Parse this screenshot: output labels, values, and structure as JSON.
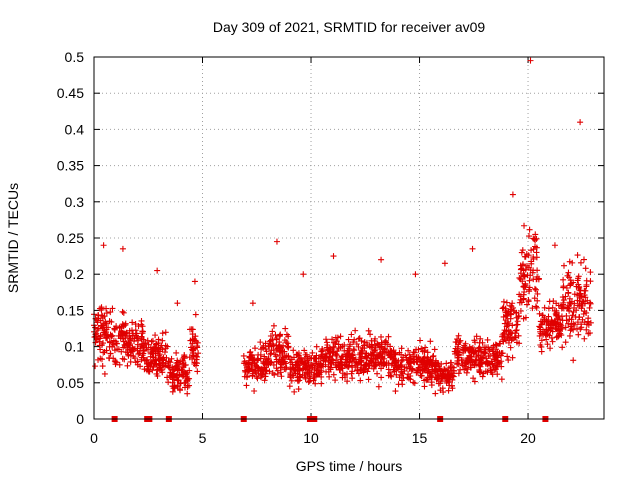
{
  "chart_data": {
    "type": "scatter",
    "title": "Day 309 of 2021, SRMTID for receiver av09",
    "xlabel": "GPS time / hours",
    "ylabel": "SRMTID / TECUs",
    "xlim": [
      0,
      23.5
    ],
    "ylim": [
      0,
      0.5
    ],
    "xticks": [
      0,
      5,
      10,
      15,
      20
    ],
    "xtick_labels": [
      "0",
      "5",
      "10",
      "15",
      "20"
    ],
    "yticks": [
      0,
      0.05,
      0.1,
      0.15,
      0.2,
      0.25,
      0.3,
      0.35,
      0.4,
      0.45,
      0.5
    ],
    "ytick_labels": [
      "0",
      "0.05",
      "0.1",
      "0.15",
      "0.2",
      "0.25",
      "0.3",
      "0.35",
      "0.4",
      "0.45",
      "0.5"
    ],
    "grid": true,
    "marker": "plus",
    "color": "#e00000",
    "segments": [
      {
        "x_start": 0.0,
        "x_end": 0.9,
        "mean": 0.115,
        "spread": 0.07,
        "max": 0.24
      },
      {
        "x_start": 0.9,
        "x_end": 2.3,
        "mean": 0.105,
        "spread": 0.065,
        "max": 0.235
      },
      {
        "x_start": 2.3,
        "x_end": 3.4,
        "mean": 0.085,
        "spread": 0.055,
        "max": 0.205
      },
      {
        "x_start": 3.4,
        "x_end": 4.4,
        "mean": 0.065,
        "spread": 0.05,
        "max": 0.16
      },
      {
        "x_start": 4.4,
        "x_end": 4.8,
        "mean": 0.1,
        "spread": 0.06,
        "max": 0.19
      },
      {
        "x_start": 6.9,
        "x_end": 8.0,
        "mean": 0.075,
        "spread": 0.05,
        "max": 0.16
      },
      {
        "x_start": 8.0,
        "x_end": 9.0,
        "mean": 0.09,
        "spread": 0.06,
        "max": 0.245
      },
      {
        "x_start": 9.0,
        "x_end": 10.5,
        "mean": 0.07,
        "spread": 0.05,
        "max": 0.2
      },
      {
        "x_start": 10.5,
        "x_end": 12.0,
        "mean": 0.085,
        "spread": 0.055,
        "max": 0.225
      },
      {
        "x_start": 12.0,
        "x_end": 13.8,
        "mean": 0.085,
        "spread": 0.055,
        "max": 0.22
      },
      {
        "x_start": 13.8,
        "x_end": 15.8,
        "mean": 0.075,
        "spread": 0.05,
        "max": 0.2
      },
      {
        "x_start": 15.8,
        "x_end": 16.6,
        "mean": 0.06,
        "spread": 0.045,
        "max": 0.215
      },
      {
        "x_start": 16.6,
        "x_end": 18.8,
        "mean": 0.085,
        "spread": 0.05,
        "max": 0.235
      },
      {
        "x_start": 18.8,
        "x_end": 19.6,
        "mean": 0.13,
        "spread": 0.08,
        "max": 0.31
      },
      {
        "x_start": 19.6,
        "x_end": 20.5,
        "mean": 0.2,
        "spread": 0.13,
        "max": 0.495
      },
      {
        "x_start": 20.5,
        "x_end": 21.6,
        "mean": 0.13,
        "spread": 0.07,
        "max": 0.24
      },
      {
        "x_start": 21.6,
        "x_end": 22.9,
        "mean": 0.16,
        "spread": 0.11,
        "max": 0.41
      }
    ],
    "zero_flags_x": [
      0.95,
      2.45,
      2.55,
      3.45,
      6.9,
      9.95,
      10.15,
      15.95,
      18.95,
      20.8
    ]
  }
}
